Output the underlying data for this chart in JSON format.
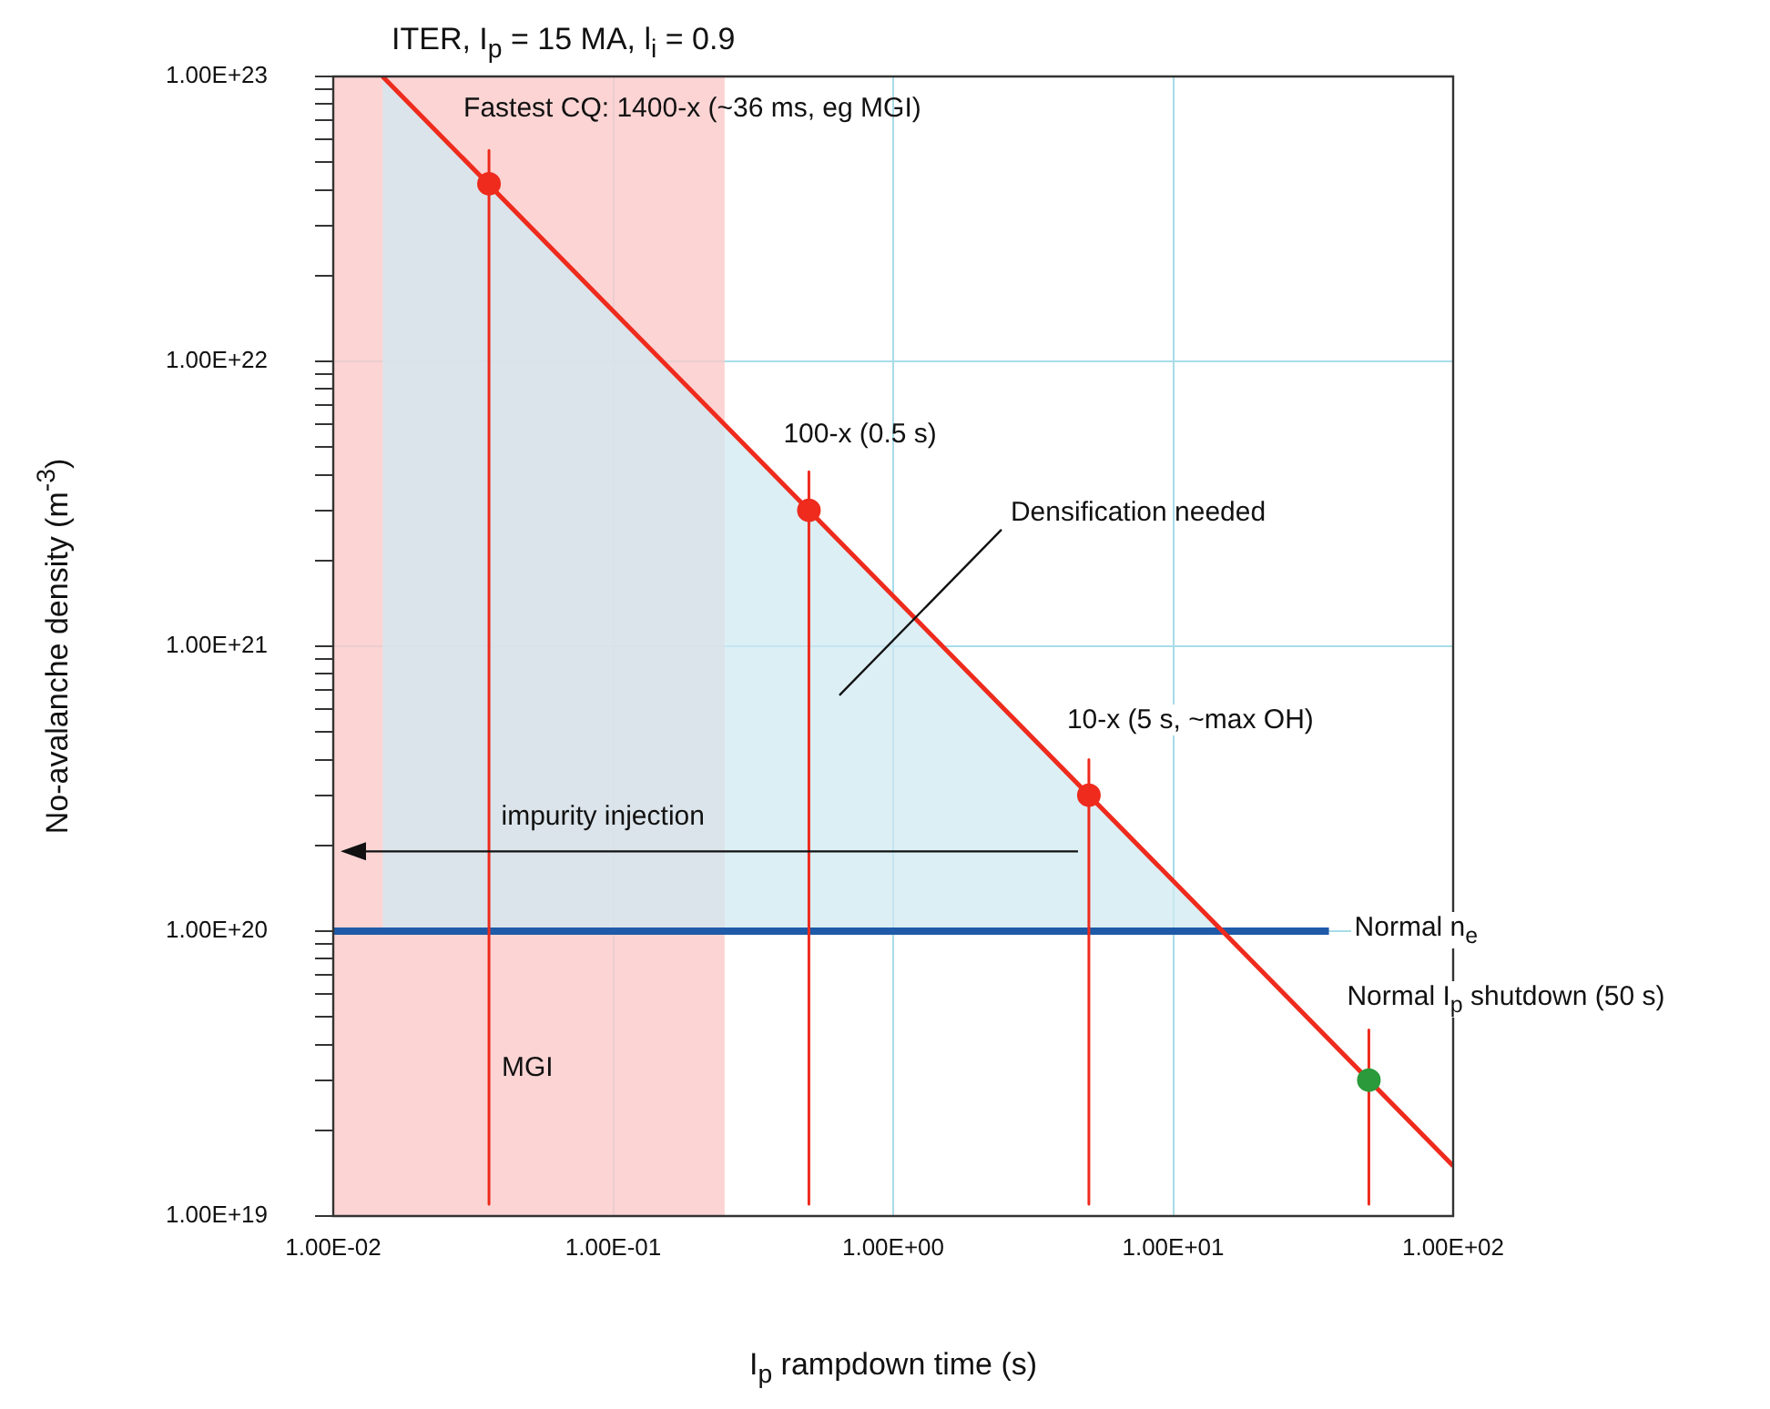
{
  "chart_data": {
    "type": "line",
    "title": "ITER, I$_{p}$ = 15 MA, l$_{i}$ = 0.9",
    "xlabel": "I$_{p}$ rampdown time (s)",
    "ylabel": "No-avalanche density (m$^{-3}$)",
    "log": "xy",
    "grid": true,
    "legend": false,
    "xlim": [
      0.01,
      100
    ],
    "ylim": [
      1e+19,
      1e+23
    ],
    "xticks": [
      {
        "value": 0.01,
        "label": "1.00E-02"
      },
      {
        "value": 0.1,
        "label": "1.00E-01"
      },
      {
        "value": 1,
        "label": "1.00E+00"
      },
      {
        "value": 10,
        "label": "1.00E+01"
      },
      {
        "value": 100,
        "label": "1.00E+02"
      }
    ],
    "yticks": [
      {
        "value": 1e+19,
        "label": "1.00E+19"
      },
      {
        "value": 2e+19,
        "label": null
      },
      {
        "value": 3e+19,
        "label": null
      },
      {
        "value": 4e+19,
        "label": null
      },
      {
        "value": 5e+19,
        "label": null
      },
      {
        "value": 6e+19,
        "label": null
      },
      {
        "value": 7e+19,
        "label": null
      },
      {
        "value": 8e+19,
        "label": null
      },
      {
        "value": 9e+19,
        "label": null
      },
      {
        "value": 1e+20,
        "label": "1.00E+20"
      },
      {
        "value": 2e+20,
        "label": null
      },
      {
        "value": 3e+20,
        "label": null
      },
      {
        "value": 4e+20,
        "label": null
      },
      {
        "value": 5e+20,
        "label": null
      },
      {
        "value": 6e+20,
        "label": null
      },
      {
        "value": 7e+20,
        "label": null
      },
      {
        "value": 8e+20,
        "label": null
      },
      {
        "value": 9e+20,
        "label": null
      },
      {
        "value": 1e+21,
        "label": "1.00E+21"
      },
      {
        "value": 2e+21,
        "label": null
      },
      {
        "value": 3e+21,
        "label": null
      },
      {
        "value": 4e+21,
        "label": null
      },
      {
        "value": 5e+21,
        "label": null
      },
      {
        "value": 6e+21,
        "label": null
      },
      {
        "value": 7e+21,
        "label": null
      },
      {
        "value": 8e+21,
        "label": null
      },
      {
        "value": 9e+21,
        "label": null
      },
      {
        "value": 1e+22,
        "label": "1.00E+22"
      },
      {
        "value": 2e+22,
        "label": null
      },
      {
        "value": 3e+22,
        "label": null
      },
      {
        "value": 4e+22,
        "label": null
      },
      {
        "value": 5e+22,
        "label": null
      },
      {
        "value": 6e+22,
        "label": null
      },
      {
        "value": 7e+22,
        "label": null
      },
      {
        "value": 8e+22,
        "label": null
      },
      {
        "value": 9e+22,
        "label": null
      },
      {
        "value": 1e+23,
        "label": "1.00E+23"
      }
    ],
    "bands": [
      {
        "axis": "x",
        "from": 0.01,
        "to": 0.25,
        "label": "MGI",
        "color": "#fbc9c9"
      }
    ],
    "series": [
      {
        "type": "area",
        "x": [
          0.015,
          15
        ],
        "values": [
          1e+23,
          1e+20
        ],
        "color": "#cfe9f1"
      },
      {
        "name": "Normal n$_{e}$",
        "x": [
          0.01,
          36
        ],
        "values": [
          1e+20,
          1e+20
        ],
        "color": "#1f5aa8",
        "marker": "none"
      },
      {
        "x": [
          0.036,
          0.036
        ],
        "values": [
          5.5e+22,
          1.1e+19
        ],
        "color": "#ee2b1d",
        "marker": "none"
      },
      {
        "x": [
          0.5,
          0.5
        ],
        "values": [
          4.1e+21,
          1.1e+19
        ],
        "color": "#ee2b1d",
        "marker": "none"
      },
      {
        "x": [
          5,
          5
        ],
        "values": [
          4e+20,
          1.1e+19
        ],
        "color": "#ee2b1d",
        "marker": "none"
      },
      {
        "x": [
          50,
          50
        ],
        "values": [
          4.5e+19,
          1.1e+19
        ],
        "color": "#ee2b1d",
        "marker": "none"
      },
      {
        "x": [
          0.015,
          100
        ],
        "values": [
          1e+23,
          1.5e+19
        ],
        "color": "#ee2b1d",
        "marker": "none"
      },
      {
        "type": "scatter",
        "x": [
          0.036,
          0.5,
          5,
          50
        ],
        "values": [
          4.2e+22,
          3e+21,
          3e+20,
          3e+19
        ],
        "colors": [
          "#ee2b1d",
          "#ee2b1d",
          "#ee2b1d",
          "#2a9a3a"
        ],
        "marker": "circle"
      }
    ],
    "annotations": [
      {
        "text": "Fastest CQ: 1400-x (~36 ms, eg MGI)",
        "x": 0.036,
        "y": 4.2e+22
      },
      {
        "text": "100-x (0.5 s)",
        "x": 0.5,
        "y": 3e+21
      },
      {
        "text": "10-x (5 s, ~max OH)",
        "x": 5,
        "y": 3e+20
      },
      {
        "text": "Normal I$_{p}$ shutdown (50 s)",
        "x": 50,
        "y": 3e+19
      },
      "Densification needed",
      "impurity injection"
    ]
  }
}
